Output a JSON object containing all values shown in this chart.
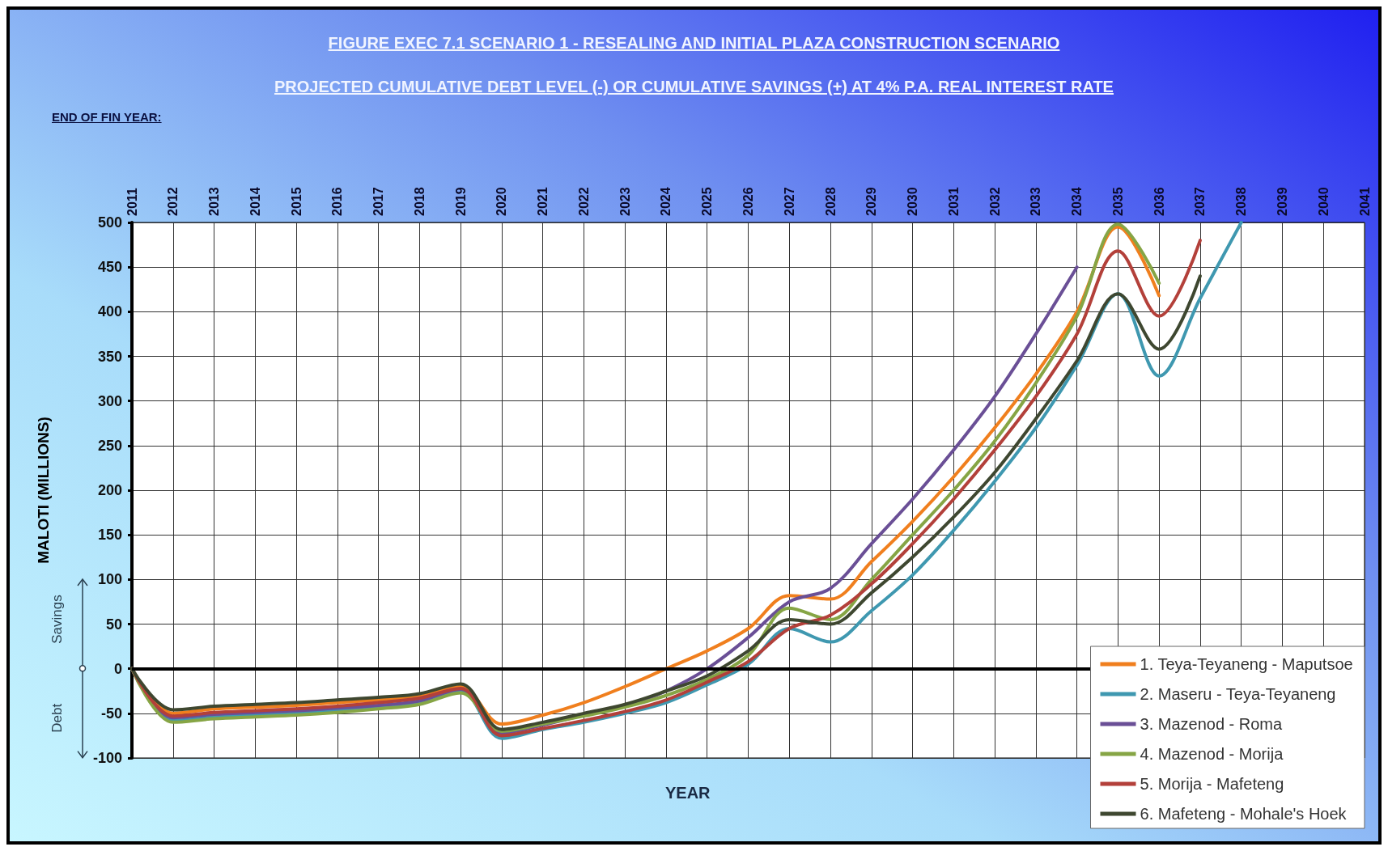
{
  "chart_data": {
    "type": "line",
    "title": "FIGURE EXEC 7.1 SCENARIO 1 - RESEALING AND INITIAL PLAZA CONSTRUCTION SCENARIO",
    "subtitle": "PROJECTED CUMULATIVE DEBT LEVEL (-) OR CUMULATIVE SAVINGS (+) AT 4% P.A. REAL INTEREST RATE",
    "xlabel": "YEAR",
    "ylabel": "MALOTI (MILLIONS)",
    "annotations": [
      "END OF FIN YEAR:",
      "Savings",
      "Debt"
    ],
    "categories": [
      "2011",
      "2012",
      "2013",
      "2014",
      "2015",
      "2016",
      "2017",
      "2018",
      "2019",
      "2020",
      "2021",
      "2022",
      "2023",
      "2024",
      "2025",
      "2026",
      "2027",
      "2028",
      "2029",
      "2030",
      "2031",
      "2032",
      "2033",
      "2034",
      "2035",
      "2036",
      "2037",
      "2038",
      "2039",
      "2040",
      "2041"
    ],
    "series": [
      {
        "name": "1. Teya-Teyaneng - Maputsoe",
        "color": "#f07f1e",
        "values": [
          0,
          -50,
          -45,
          -43,
          -41,
          -38,
          -35,
          -31,
          -20,
          -62,
          -52,
          -38,
          -20,
          0,
          20,
          45,
          82,
          78,
          120,
          165,
          215,
          270,
          330,
          400,
          495,
          418,
          null,
          null,
          null,
          null,
          null
        ]
      },
      {
        "name": "2. Maseru - Teya-Teyaneng",
        "color": "#3f98b0",
        "values": [
          0,
          -58,
          -54,
          -52,
          -50,
          -47,
          -43,
          -38,
          -25,
          -78,
          -68,
          -60,
          -50,
          -38,
          -18,
          5,
          45,
          30,
          65,
          105,
          155,
          210,
          270,
          340,
          420,
          328,
          415,
          500,
          null,
          null,
          null
        ]
      },
      {
        "name": "3. Mazenod - Roma",
        "color": "#6a4f96",
        "values": [
          0,
          -55,
          -51,
          -49,
          -47,
          -44,
          -41,
          -36,
          -23,
          -72,
          -63,
          -52,
          -42,
          -25,
          0,
          35,
          75,
          90,
          140,
          190,
          245,
          305,
          375,
          450,
          null,
          null,
          null,
          null,
          null,
          null,
          null
        ]
      },
      {
        "name": "4. Mazenod - Morija",
        "color": "#86a545",
        "values": [
          0,
          -60,
          -56,
          -54,
          -52,
          -49,
          -45,
          -40,
          -27,
          -70,
          -62,
          -53,
          -43,
          -30,
          -12,
          15,
          68,
          55,
          100,
          150,
          200,
          255,
          320,
          395,
          498,
          432,
          null,
          null,
          null,
          null,
          null
        ]
      },
      {
        "name": "5. Morija - Mafeteng",
        "color": "#b3403a",
        "values": [
          0,
          -53,
          -49,
          -47,
          -45,
          -42,
          -38,
          -33,
          -22,
          -75,
          -67,
          -58,
          -48,
          -35,
          -15,
          8,
          45,
          60,
          95,
          140,
          190,
          245,
          305,
          375,
          468,
          395,
          480,
          null,
          null,
          null,
          null
        ]
      },
      {
        "name": "6. Mafeteng - Mohale's Hoek",
        "color": "#3e4730",
        "values": [
          0,
          -46,
          -42,
          -40,
          -38,
          -35,
          -32,
          -28,
          -17,
          -68,
          -60,
          -50,
          -40,
          -25,
          -8,
          20,
          55,
          50,
          85,
          125,
          170,
          220,
          280,
          345,
          420,
          358,
          440,
          null,
          null,
          null,
          null
        ]
      }
    ],
    "ylim": [
      -100,
      500
    ],
    "yticks": [
      -100,
      -50,
      0,
      50,
      100,
      150,
      200,
      250,
      300,
      350,
      400,
      450,
      500
    ],
    "ref_lines": [
      {
        "axis": "y",
        "value": 0,
        "color": "#000000"
      }
    ],
    "grid": true,
    "legend": "bottom right",
    "marker": "none",
    "line_style": "solid"
  }
}
